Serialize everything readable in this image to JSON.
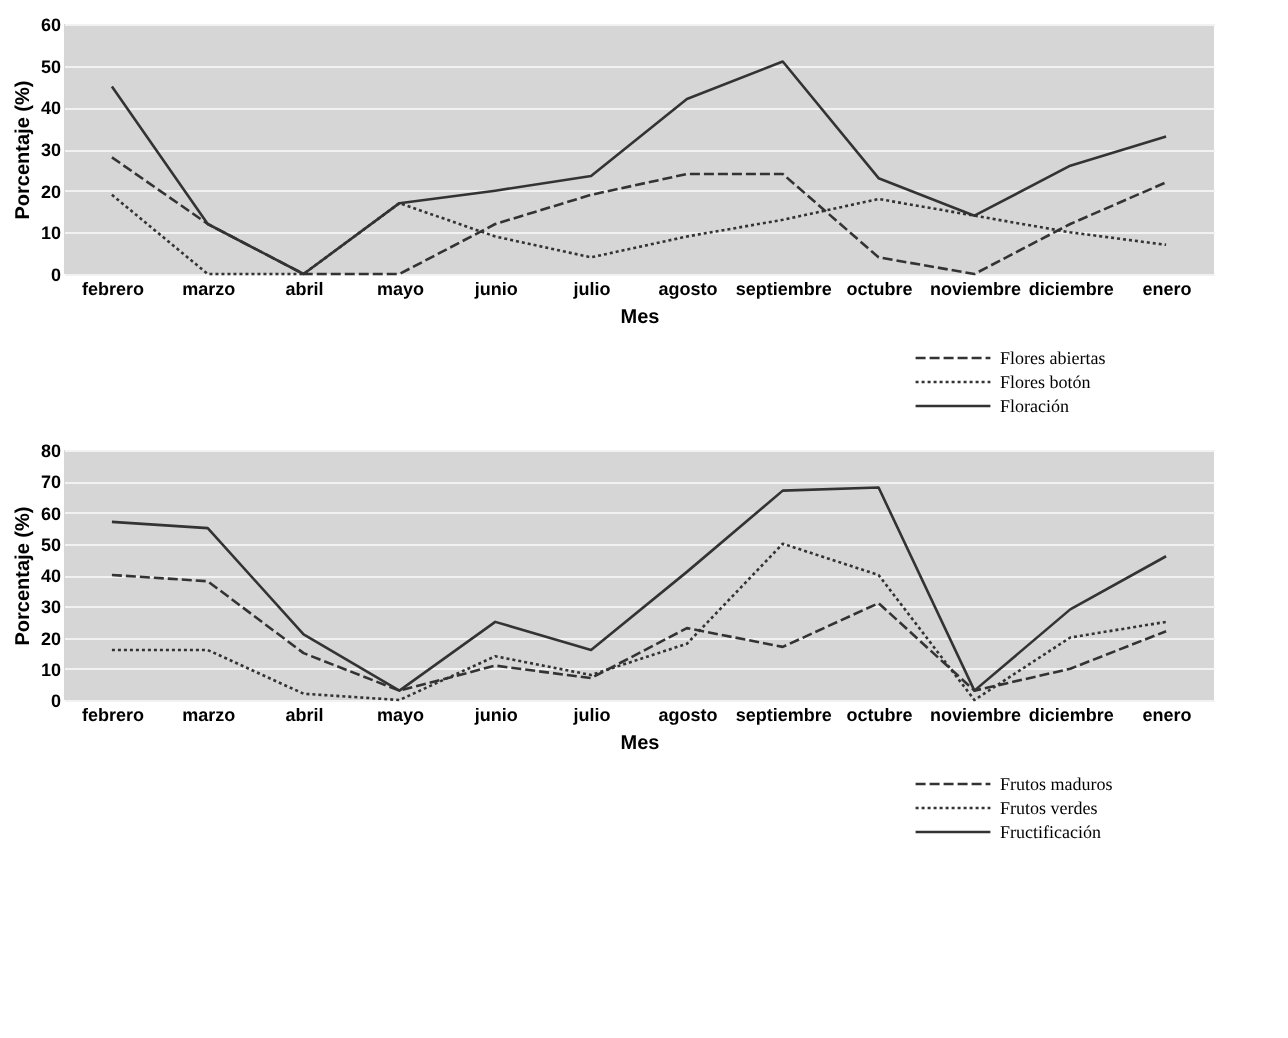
{
  "chart_data": [
    {
      "type": "line",
      "xlabel": "Mes",
      "ylabel": "Porcentaje (%)",
      "categories": [
        "febrero",
        "marzo",
        "abril",
        "mayo",
        "junio",
        "julio",
        "agosto",
        "septiembre",
        "octubre",
        "noviembre",
        "diciembre",
        "enero"
      ],
      "ylim": [
        0,
        60
      ],
      "yticks": [
        0,
        10,
        20,
        30,
        40,
        50,
        60
      ],
      "grid": "y",
      "legend": "bottom right",
      "marker": "none",
      "series": [
        {
          "name": "Flores abiertas",
          "color": "#333333",
          "line_style": "dashed",
          "values": [
            28,
            12,
            0,
            0,
            12,
            19,
            24,
            24,
            4,
            0,
            12,
            22
          ]
        },
        {
          "name": "Flores botón",
          "color": "#333333",
          "line_style": "dotted",
          "values": [
            19,
            0,
            0,
            17,
            9,
            4,
            9,
            13,
            18,
            14,
            10,
            7
          ]
        },
        {
          "name": "Floración",
          "color": "#333333",
          "line_style": "solid",
          "values": [
            45,
            12,
            0,
            17,
            20,
            23.5,
            42,
            51,
            23,
            14,
            26,
            33
          ]
        }
      ]
    },
    {
      "type": "line",
      "xlabel": "Mes",
      "ylabel": "Porcentaje (%)",
      "categories": [
        "febrero",
        "marzo",
        "abril",
        "mayo",
        "junio",
        "julio",
        "agosto",
        "septiembre",
        "octubre",
        "noviembre",
        "diciembre",
        "enero"
      ],
      "ylim": [
        0,
        80
      ],
      "yticks": [
        0,
        10,
        20,
        30,
        40,
        50,
        60,
        70,
        80
      ],
      "grid": "y",
      "legend": "bottom right",
      "marker": "none",
      "series": [
        {
          "name": "Frutos maduros",
          "color": "#333333",
          "line_style": "dashed",
          "values": [
            40,
            38,
            15,
            3,
            11,
            7,
            23,
            17,
            31,
            3,
            10,
            22
          ]
        },
        {
          "name": "Frutos verdes",
          "color": "#333333",
          "line_style": "dotted",
          "values": [
            16,
            16,
            2,
            0,
            14,
            8,
            18,
            50,
            40,
            0,
            20,
            25
          ]
        },
        {
          "name": "Fructificación",
          "color": "#333333",
          "line_style": "solid",
          "values": [
            57,
            55,
            21,
            3,
            25,
            16,
            41,
            67,
            68,
            3,
            29,
            46
          ]
        }
      ]
    }
  ]
}
